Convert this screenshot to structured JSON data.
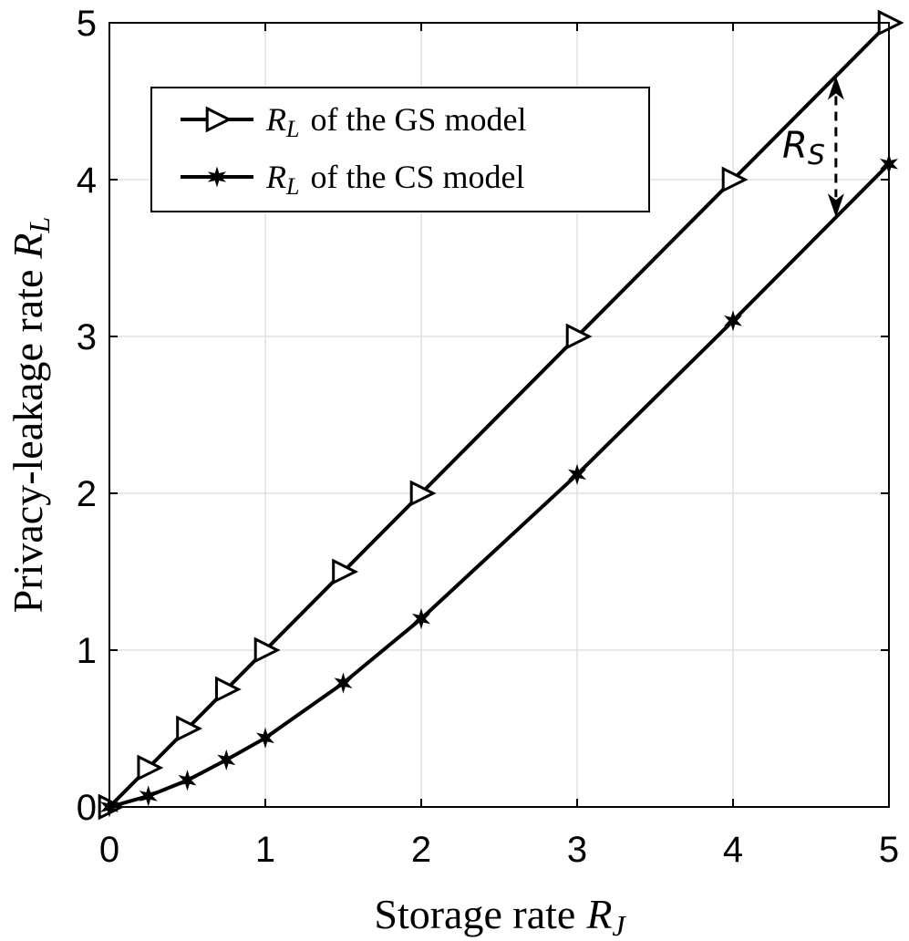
{
  "chart_data": {
    "type": "line",
    "title": "",
    "xlabel": "Storage rate",
    "xlabel_symbol": "R",
    "xlabel_sub": "J",
    "ylabel": "Privacy-leakage rate",
    "ylabel_symbol": "R",
    "ylabel_sub": "L",
    "xlim": [
      0,
      5
    ],
    "ylim": [
      0,
      5
    ],
    "xticks": [
      "0",
      "1",
      "2",
      "3",
      "4",
      "5"
    ],
    "yticks": [
      "0",
      "1",
      "2",
      "3",
      "4",
      "5"
    ],
    "grid": true,
    "legend_position": "top-left",
    "series": [
      {
        "name": "of the GS model",
        "name_symbol": "R",
        "name_sub": "L",
        "marker": "triangle-right",
        "color": "#000000",
        "x": [
          0,
          0.25,
          0.5,
          0.75,
          1,
          1.5,
          2,
          3,
          4,
          5
        ],
        "y": [
          0,
          0.25,
          0.5,
          0.75,
          1,
          1.5,
          2,
          3,
          4,
          5
        ]
      },
      {
        "name": "of the CS model",
        "name_symbol": "R",
        "name_sub": "L",
        "marker": "star",
        "color": "#000000",
        "x": [
          0,
          0.25,
          0.5,
          0.75,
          1,
          1.5,
          2,
          3,
          4,
          5
        ],
        "y": [
          0,
          0.07,
          0.17,
          0.3,
          0.44,
          0.79,
          1.2,
          2.12,
          3.1,
          4.1
        ]
      }
    ],
    "annotation": {
      "symbol": "R",
      "sub": "S",
      "x": 4.66,
      "y_top": 4.66,
      "y_bottom": 3.76
    }
  }
}
